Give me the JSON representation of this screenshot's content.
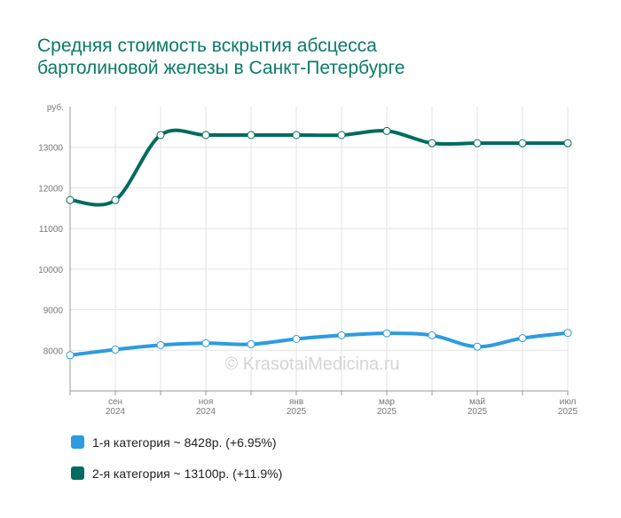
{
  "chart_data": {
    "type": "line",
    "title": [
      "Средняя стоимость вскрытия абсцесса",
      "бартолиновой железы в Санкт-Петербурге"
    ],
    "y_label": "руб.",
    "watermark": "© KrasotaiMedicina.ru",
    "categories": [
      null,
      [
        "сен",
        "2024"
      ],
      null,
      [
        "ноя",
        "2024"
      ],
      null,
      [
        "янв",
        "2025"
      ],
      null,
      [
        "мар",
        "2025"
      ],
      null,
      [
        "май",
        "2025"
      ],
      null,
      [
        "июл",
        "2025"
      ]
    ],
    "series": [
      {
        "name": "1-я категория ~ 8428р. (+6.95%)",
        "color": "#2d9be0",
        "values": [
          7880,
          8020,
          8130,
          8175,
          8150,
          8280,
          8370,
          8420,
          8370,
          8090,
          8300,
          8428
        ]
      },
      {
        "name": "2-я категория ~ 13100р. (+11.9%)",
        "color": "#006b5f",
        "values": [
          11700,
          11700,
          13300,
          13300,
          13300,
          13300,
          13300,
          13400,
          13100,
          13100,
          13100,
          13100
        ]
      }
    ],
    "ylim": [
      7000,
      14000
    ],
    "yticks": [
      8000,
      9000,
      10000,
      11000,
      12000,
      13000
    ],
    "grid": true
  }
}
